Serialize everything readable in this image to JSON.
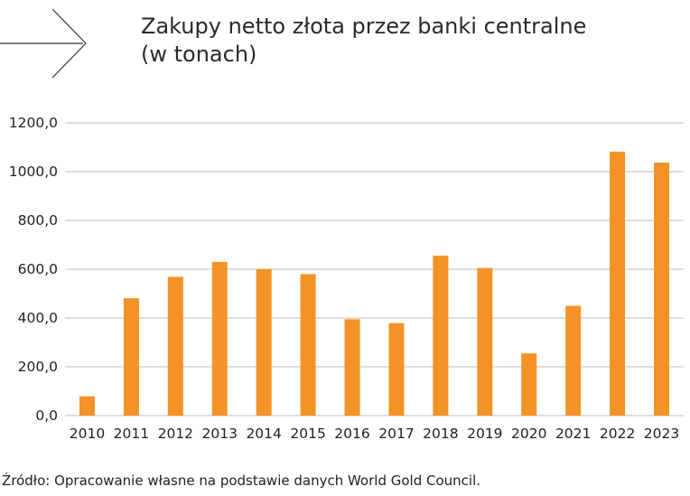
{
  "header": {
    "title_line1": "Zakupy netto złota przez banki centralne",
    "title_line2": "(w tonach)"
  },
  "footer": {
    "source": "Źródło: Opracowanie własne na podstawie danych World Gold Council."
  },
  "icons": {
    "arrow": "arrow-right-icon"
  },
  "colors": {
    "bar": "#F39325",
    "grid": "#BDBDBD",
    "text": "#222222"
  },
  "chart_data": {
    "type": "bar",
    "title": "Zakupy netto złota przez banki centralne (w tonach)",
    "xlabel": "",
    "ylabel": "",
    "categories": [
      "2010",
      "2011",
      "2012",
      "2013",
      "2014",
      "2015",
      "2016",
      "2017",
      "2018",
      "2019",
      "2020",
      "2021",
      "2022",
      "2023"
    ],
    "values": [
      79,
      481,
      569,
      630,
      600,
      580,
      395,
      379,
      656,
      605,
      255,
      450,
      1082,
      1037
    ],
    "ylim": [
      0,
      1200
    ],
    "yticks": [
      0,
      200,
      400,
      600,
      800,
      1000,
      1200
    ],
    "ytick_labels": [
      "0,0",
      "200,0",
      "400,0",
      "600,0",
      "800,0",
      "1000,0",
      "1200,0"
    ],
    "grid": true,
    "legend": "none"
  }
}
